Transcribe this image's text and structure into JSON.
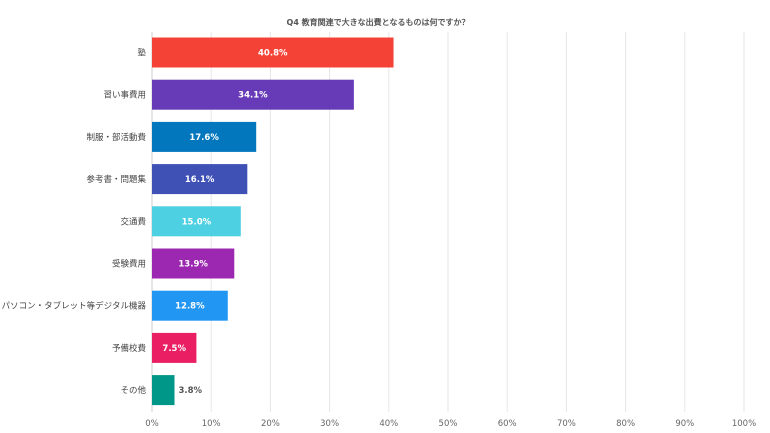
{
  "chart_data": {
    "type": "bar",
    "orientation": "horizontal",
    "title": "Q4 教育関連で大きな出費となるものは何ですか？",
    "categories": [
      "塾",
      "習い事費用",
      "制服・部活動費",
      "参考書・問題集",
      "交通費",
      "受験費用",
      "パソコン・タブレット等デジタル機器",
      "予備校費",
      "その他"
    ],
    "values": [
      40.8,
      34.1,
      17.6,
      16.1,
      15.0,
      13.9,
      12.8,
      7.5,
      3.8
    ],
    "data_labels": [
      "40.8%",
      "34.1%",
      "17.6%",
      "16.1%",
      "15.0%",
      "13.9%",
      "12.8%",
      "7.5%",
      "3.8%"
    ],
    "bar_colors": [
      "#f44336",
      "#673ab7",
      "#0277bd",
      "#3f51b5",
      "#4dd0e1",
      "#9c27b0",
      "#2196f3",
      "#e91e63",
      "#009688"
    ],
    "label_colors": [
      "#ffffff",
      "#ffffff",
      "#ffffff",
      "#ffffff",
      "#ffffff",
      "#ffffff",
      "#ffffff",
      "#ffffff",
      "#555555"
    ],
    "x_ticks": [
      "0%",
      "10%",
      "20%",
      "30%",
      "40%",
      "50%",
      "60%",
      "70%",
      "80%",
      "90%",
      "100%"
    ],
    "xlim": [
      0,
      100
    ],
    "grid": true,
    "legend": "none"
  }
}
